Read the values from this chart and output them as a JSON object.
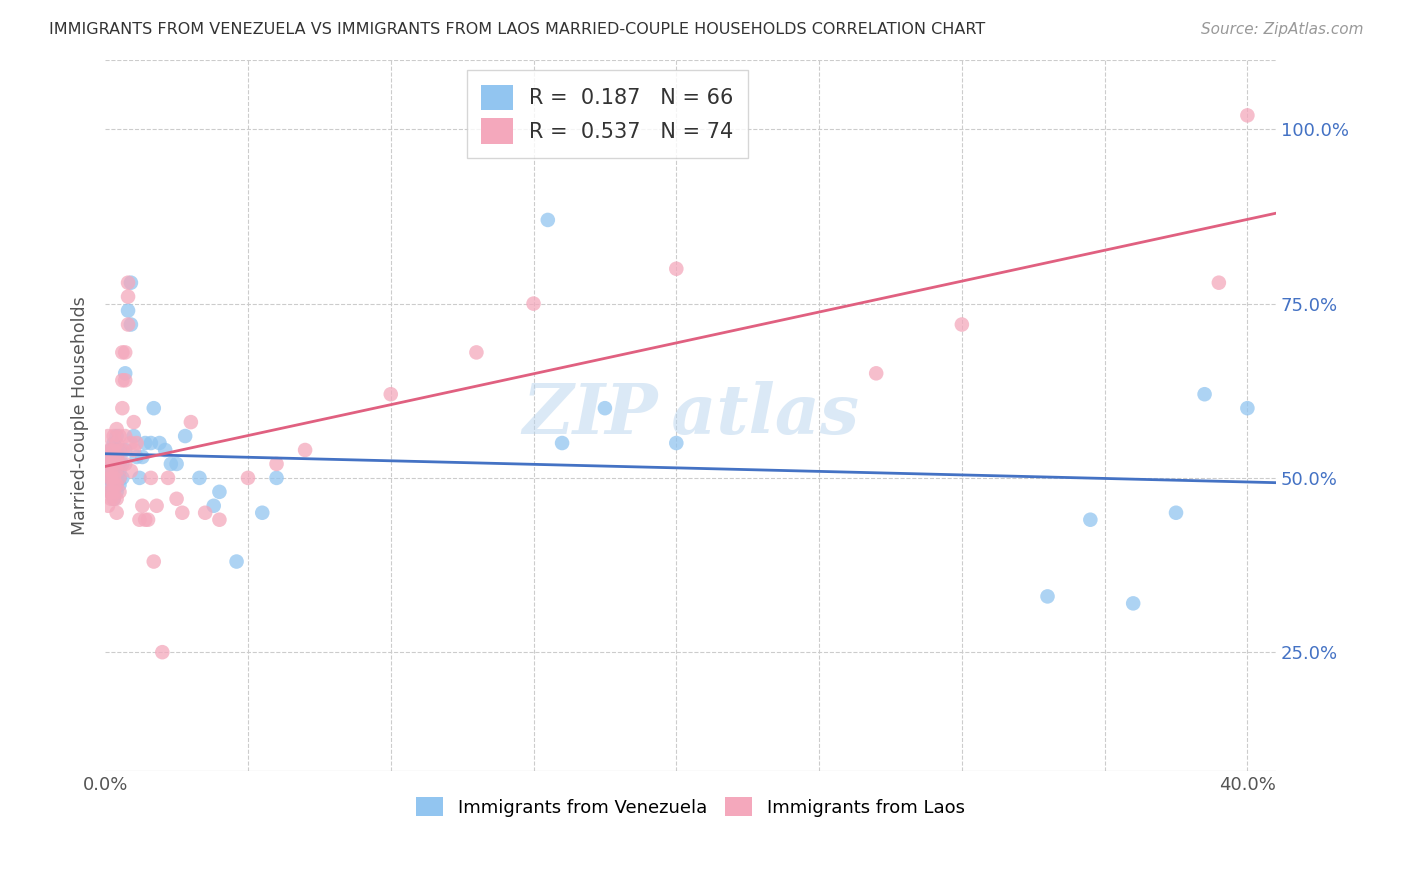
{
  "title": "IMMIGRANTS FROM VENEZUELA VS IMMIGRANTS FROM LAOS MARRIED-COUPLE HOUSEHOLDS CORRELATION CHART",
  "source": "Source: ZipAtlas.com",
  "ylabel": "Married-couple Households",
  "r_venezuela": 0.187,
  "n_venezuela": 66,
  "r_laos": 0.537,
  "n_laos": 74,
  "color_venezuela": "#92C5F0",
  "color_laos": "#F4A8BC",
  "line_color_venezuela": "#4472C4",
  "line_color_laos": "#E06080",
  "background_color": "#FFFFFF",
  "venezuela_x": [
    0.001,
    0.001,
    0.001,
    0.001,
    0.002,
    0.002,
    0.002,
    0.002,
    0.002,
    0.003,
    0.003,
    0.003,
    0.003,
    0.003,
    0.003,
    0.003,
    0.003,
    0.003,
    0.004,
    0.004,
    0.004,
    0.004,
    0.004,
    0.004,
    0.004,
    0.004,
    0.005,
    0.005,
    0.005,
    0.005,
    0.005,
    0.006,
    0.006,
    0.007,
    0.007,
    0.008,
    0.009,
    0.009,
    0.01,
    0.011,
    0.012,
    0.013,
    0.014,
    0.016,
    0.017,
    0.019,
    0.021,
    0.023,
    0.025,
    0.028,
    0.033,
    0.038,
    0.04,
    0.046,
    0.055,
    0.06,
    0.155,
    0.16,
    0.175,
    0.2,
    0.33,
    0.345,
    0.36,
    0.375,
    0.385,
    0.4
  ],
  "venezuela_y": [
    0.5,
    0.51,
    0.52,
    0.49,
    0.5,
    0.52,
    0.54,
    0.48,
    0.53,
    0.5,
    0.52,
    0.51,
    0.49,
    0.53,
    0.55,
    0.47,
    0.54,
    0.48,
    0.5,
    0.52,
    0.54,
    0.56,
    0.49,
    0.51,
    0.53,
    0.48,
    0.5,
    0.52,
    0.54,
    0.51,
    0.49,
    0.52,
    0.5,
    0.54,
    0.65,
    0.74,
    0.72,
    0.78,
    0.56,
    0.53,
    0.5,
    0.53,
    0.55,
    0.55,
    0.6,
    0.55,
    0.54,
    0.52,
    0.52,
    0.56,
    0.5,
    0.46,
    0.48,
    0.38,
    0.45,
    0.5,
    0.87,
    0.55,
    0.6,
    0.55,
    0.33,
    0.44,
    0.32,
    0.45,
    0.62,
    0.6
  ],
  "laos_x": [
    0.001,
    0.001,
    0.001,
    0.001,
    0.001,
    0.001,
    0.002,
    0.002,
    0.002,
    0.002,
    0.002,
    0.002,
    0.002,
    0.003,
    0.003,
    0.003,
    0.003,
    0.003,
    0.003,
    0.003,
    0.003,
    0.004,
    0.004,
    0.004,
    0.004,
    0.004,
    0.004,
    0.004,
    0.005,
    0.005,
    0.005,
    0.005,
    0.005,
    0.006,
    0.006,
    0.006,
    0.006,
    0.007,
    0.007,
    0.007,
    0.007,
    0.008,
    0.008,
    0.008,
    0.009,
    0.009,
    0.01,
    0.01,
    0.011,
    0.012,
    0.013,
    0.014,
    0.015,
    0.016,
    0.017,
    0.018,
    0.02,
    0.022,
    0.025,
    0.027,
    0.03,
    0.035,
    0.04,
    0.05,
    0.06,
    0.07,
    0.1,
    0.13,
    0.15,
    0.2,
    0.27,
    0.3,
    0.39,
    0.4
  ],
  "laos_y": [
    0.52,
    0.5,
    0.48,
    0.54,
    0.46,
    0.56,
    0.5,
    0.52,
    0.54,
    0.48,
    0.53,
    0.47,
    0.51,
    0.5,
    0.52,
    0.54,
    0.48,
    0.56,
    0.49,
    0.53,
    0.47,
    0.51,
    0.53,
    0.55,
    0.49,
    0.57,
    0.47,
    0.45,
    0.52,
    0.54,
    0.56,
    0.5,
    0.48,
    0.54,
    0.6,
    0.64,
    0.68,
    0.52,
    0.56,
    0.64,
    0.68,
    0.72,
    0.78,
    0.76,
    0.51,
    0.55,
    0.54,
    0.58,
    0.55,
    0.44,
    0.46,
    0.44,
    0.44,
    0.5,
    0.38,
    0.46,
    0.25,
    0.5,
    0.47,
    0.45,
    0.58,
    0.45,
    0.44,
    0.5,
    0.52,
    0.54,
    0.62,
    0.68,
    0.75,
    0.8,
    0.65,
    0.72,
    0.78,
    1.02
  ],
  "xlim": [
    0.0,
    0.41
  ],
  "ylim": [
    0.08,
    1.1
  ],
  "x_ticks": [
    0.0,
    0.05,
    0.1,
    0.15,
    0.2,
    0.25,
    0.3,
    0.35,
    0.4
  ],
  "x_tick_labels": [
    "0.0%",
    "",
    "",
    "",
    "",
    "",
    "",
    "",
    "40.0%"
  ],
  "y_ticks": [
    0.25,
    0.5,
    0.75,
    1.0
  ],
  "y_tick_labels": [
    "25.0%",
    "50.0%",
    "75.0%",
    "100.0%"
  ]
}
